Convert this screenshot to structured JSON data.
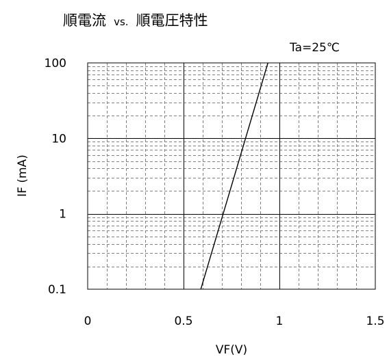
{
  "chart_data": {
    "type": "line",
    "title": {
      "part1": "順電流",
      "vs": "vs.",
      "part2": "順電圧特性"
    },
    "condition": "Ta=25℃",
    "xlabel": "VF(V)",
    "ylabel": "IF (mA)",
    "x_scale": "linear",
    "y_scale": "log",
    "xlim": [
      0,
      1.5
    ],
    "ylim": [
      0.1,
      100
    ],
    "x_ticks": [
      {
        "value": 0,
        "label": "0"
      },
      {
        "value": 0.5,
        "label": "0.5"
      },
      {
        "value": 1,
        "label": "1"
      },
      {
        "value": 1.5,
        "label": "1.5"
      }
    ],
    "y_ticks": [
      {
        "value": 0.1,
        "label": "0.1"
      },
      {
        "value": 1,
        "label": "1"
      },
      {
        "value": 10,
        "label": "10"
      },
      {
        "value": 100,
        "label": "100"
      }
    ],
    "grid": {
      "major": true,
      "minor": true,
      "x_minor_step": 0.1
    },
    "colors": {
      "line": "#000000",
      "major_grid": "#000000",
      "minor_grid": "#808080",
      "background": "#ffffff"
    },
    "series": [
      {
        "x": [
          0.59,
          0.94
        ],
        "y": [
          0.1,
          100
        ]
      }
    ]
  }
}
